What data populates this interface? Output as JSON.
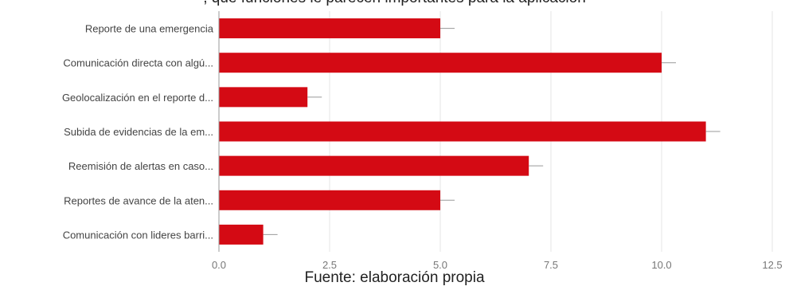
{
  "header_fragment": ", que funciones le parecen importantes para la aplicación",
  "caption": "Fuente: elaboración propia",
  "colors": {
    "bar": "#d40a14",
    "grid": "#e6e6e6",
    "axis": "#999999"
  },
  "chart_data": {
    "type": "bar",
    "orientation": "horizontal",
    "categories": [
      "Reporte de una emergencia",
      "Comunicación directa con algú...",
      "Geolocalización en el reporte d...",
      "Subida de evidencias de la em...",
      "Reemisión de alertas en caso...",
      "Reportes de avance de la aten...",
      "Comunicación con lideres barri..."
    ],
    "values": [
      5,
      10,
      2,
      11,
      7,
      5,
      1
    ],
    "xlim": [
      0,
      12.5
    ],
    "xticks": [
      "0.0",
      "2.5",
      "5.0",
      "7.5",
      "10.0",
      "12.5"
    ],
    "grid": true,
    "legend": "none"
  }
}
